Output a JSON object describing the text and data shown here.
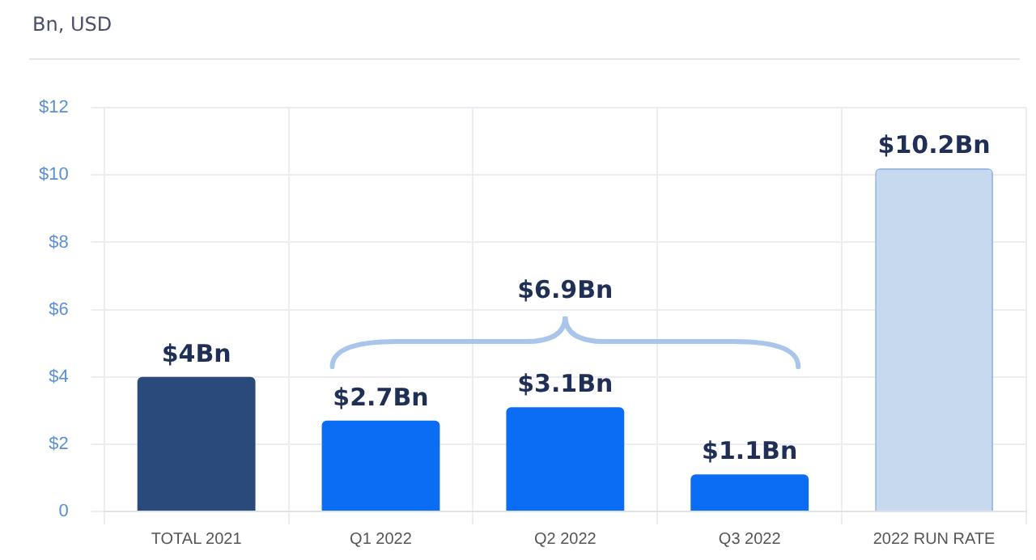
{
  "chart_data": {
    "type": "bar",
    "subtitle": "Bn, USD",
    "categories": [
      "TOTAL 2021",
      "Q1 2022",
      "Q2 2022",
      "Q3 2022",
      "2022 RUN RATE"
    ],
    "values": [
      4,
      2.7,
      3.1,
      1.1,
      10.2
    ],
    "colors": [
      "#2b4a7c",
      "#0b6cf4",
      "#0b6cf4",
      "#0b6cf4",
      "#c6d9ef"
    ],
    "value_labels": [
      "$4Bn",
      "$2.7Bn",
      "$3.1Bn",
      "$1.1Bn",
      "$10.2Bn"
    ],
    "annotations": [
      "$6.9Bn"
    ],
    "ylim": [
      0,
      12
    ],
    "yticks": [
      0,
      {
        "value": 2,
        "label": "$2"
      },
      {
        "value": 4,
        "label": "$4"
      },
      {
        "value": 6,
        "label": "$6"
      },
      {
        "value": 8,
        "label": "$8"
      },
      {
        "value": 10,
        "label": "$10"
      },
      {
        "value": 12,
        "label": "$12"
      }
    ],
    "grid": true,
    "legend": false
  }
}
